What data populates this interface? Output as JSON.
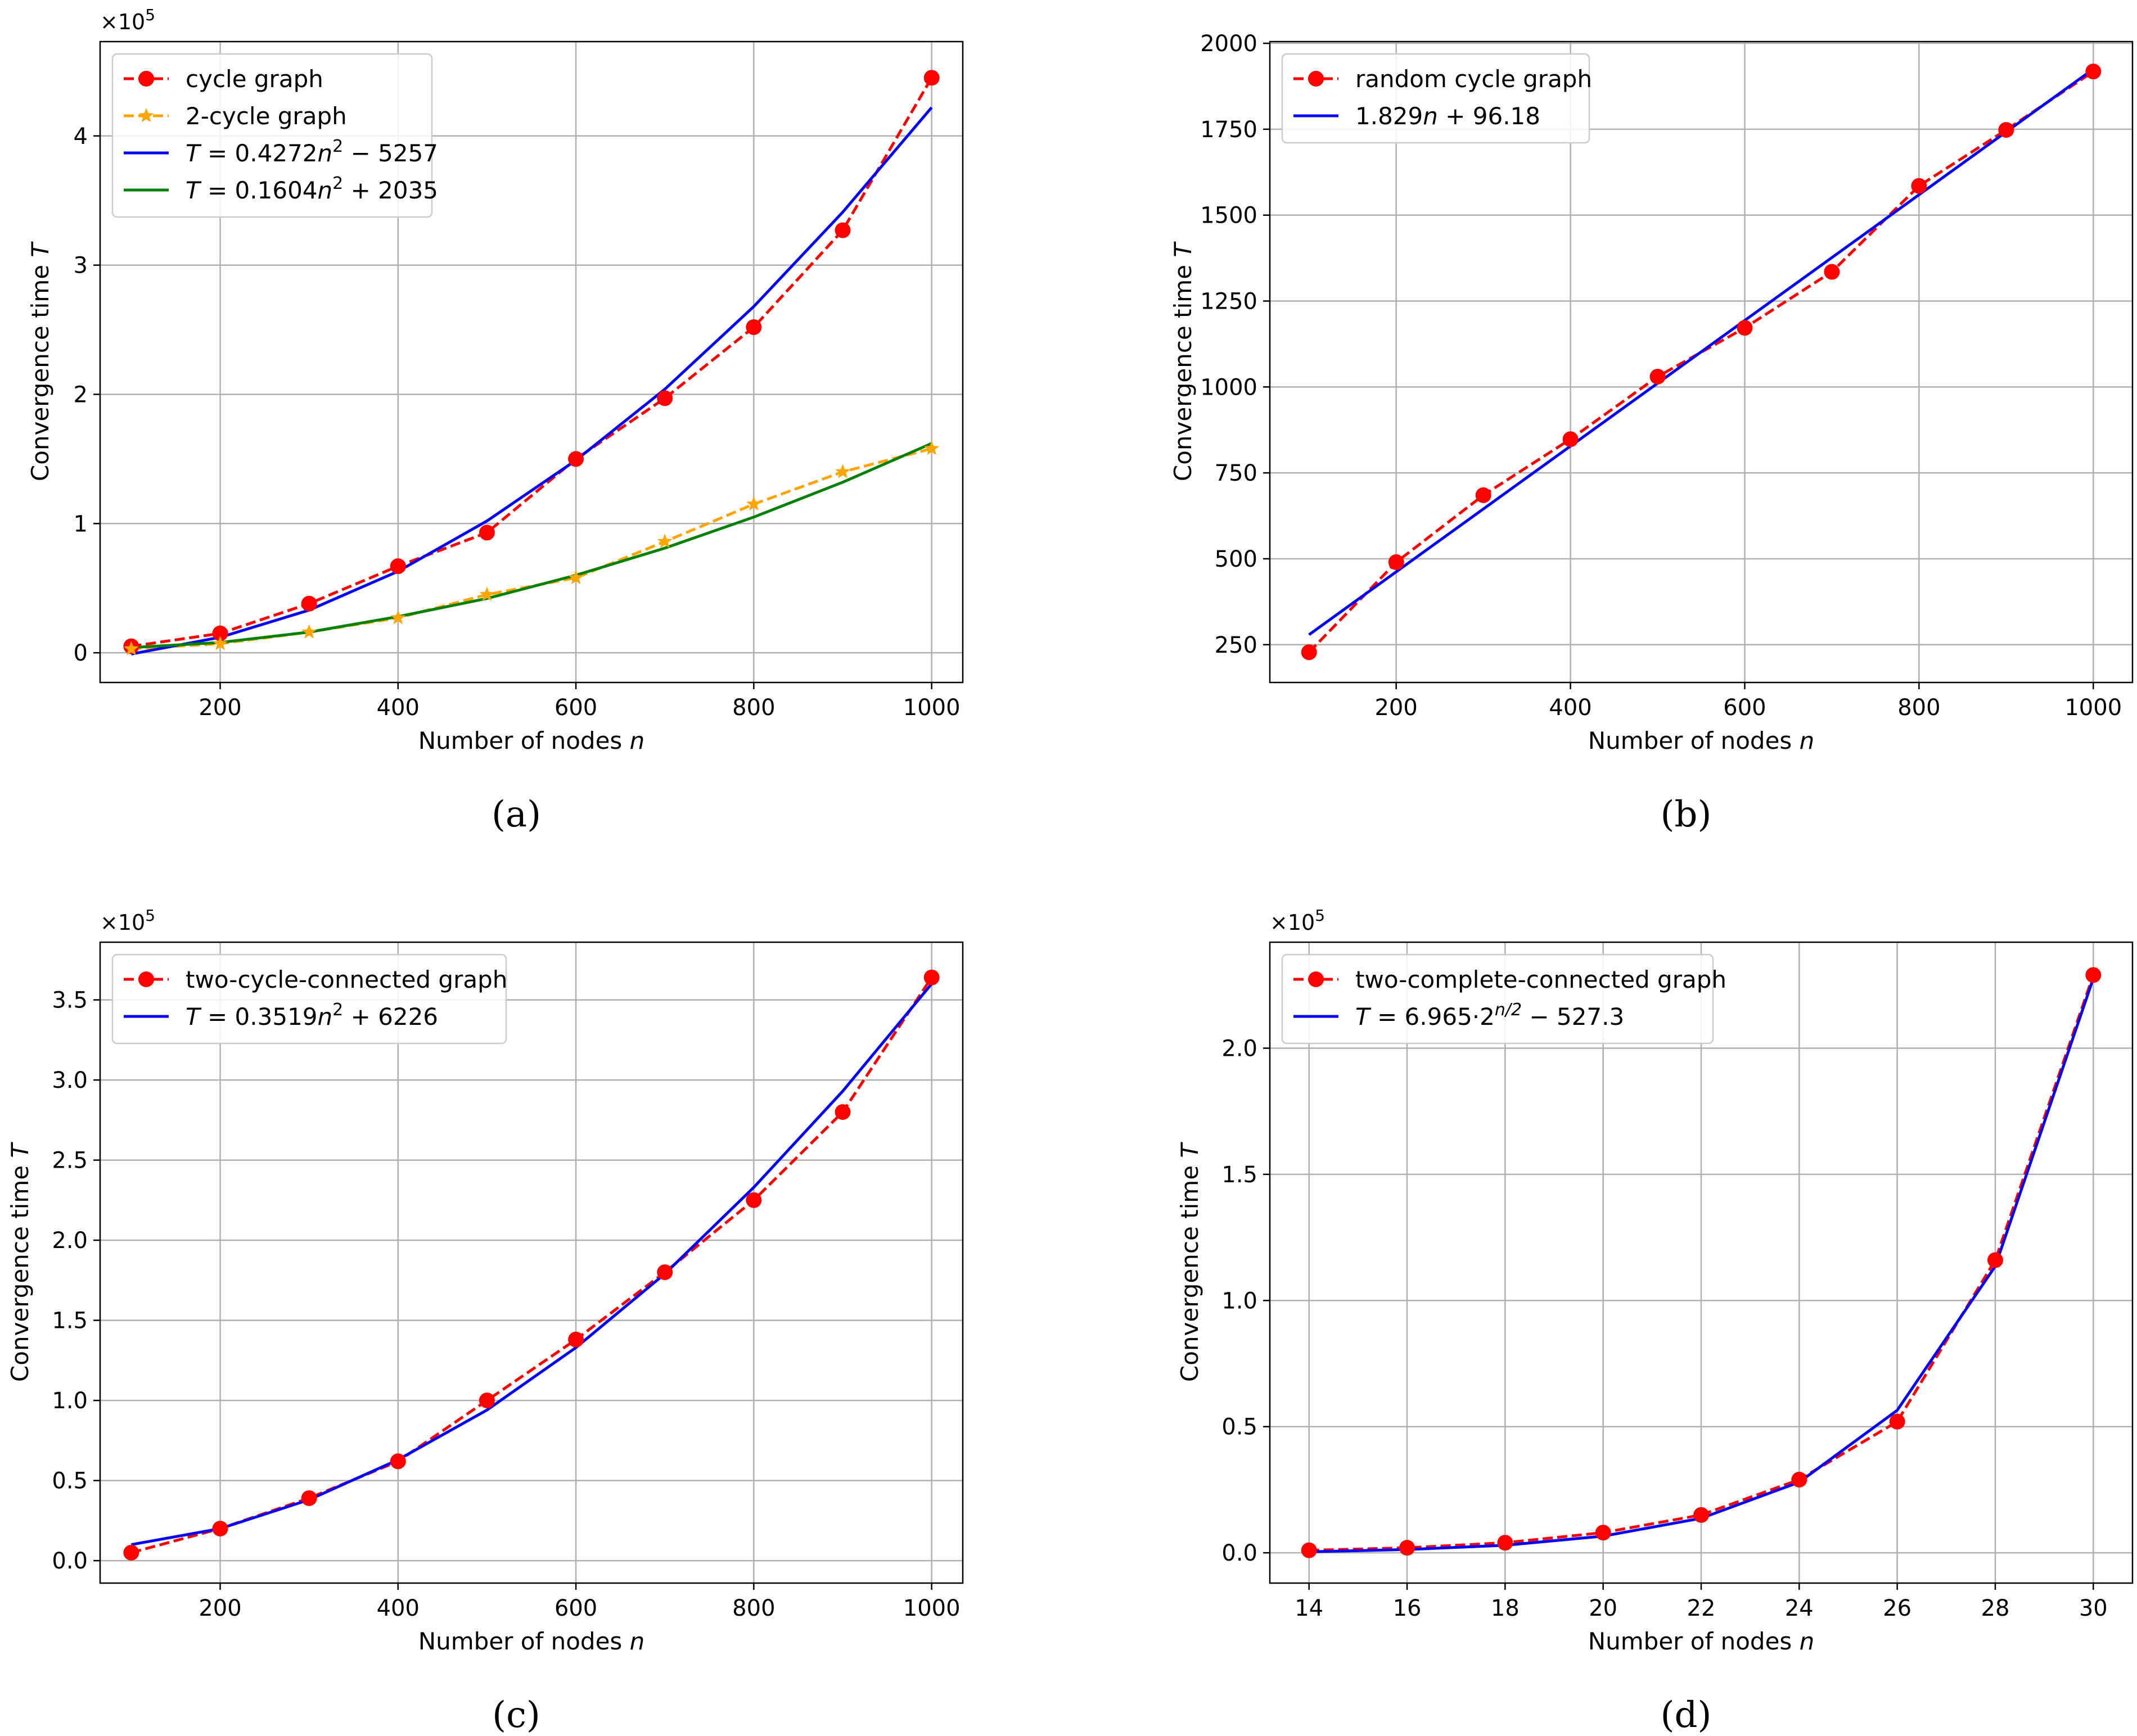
{
  "chart_data": [
    {
      "id": "a",
      "type": "line",
      "caption": "(a)",
      "xlabel": "Number of nodes n",
      "ylabel": "Convergence time T",
      "offset_label": "×10^5",
      "scale": 100000,
      "xlim": [
        65,
        1035
      ],
      "ylim": [
        -0.23,
        4.73
      ],
      "xticks": [
        200,
        400,
        600,
        800,
        1000
      ],
      "yticks": [
        0,
        1,
        2,
        3,
        4
      ],
      "ytick_labels": [
        "0",
        "1",
        "2",
        "3",
        "4"
      ],
      "grid": true,
      "legend_position": "upper-left",
      "series": [
        {
          "name": "cycle graph",
          "style": "dashed",
          "marker": "circle",
          "color": "#ff0000",
          "x": [
            100,
            200,
            300,
            400,
            500,
            600,
            700,
            800,
            900,
            1000
          ],
          "y": [
            0.05,
            0.15,
            0.38,
            0.67,
            0.93,
            1.5,
            1.97,
            2.52,
            3.27,
            4.45
          ]
        },
        {
          "name": "2-cycle graph",
          "style": "dashed",
          "marker": "star",
          "color": "#ffa500",
          "x": [
            100,
            200,
            300,
            400,
            500,
            600,
            700,
            800,
            900,
            1000
          ],
          "y": [
            0.03,
            0.07,
            0.16,
            0.27,
            0.45,
            0.58,
            0.86,
            1.15,
            1.4,
            1.58
          ]
        },
        {
          "name": "T = 0.4272n² − 5257",
          "style": "solid",
          "marker": "none",
          "color": "#0000ff",
          "x": [
            100,
            200,
            300,
            400,
            500,
            600,
            700,
            800,
            900,
            1000
          ],
          "y": [
            -0.01,
            0.12,
            0.33,
            0.63,
            1.02,
            1.49,
            2.04,
            2.68,
            3.41,
            4.22
          ]
        },
        {
          "name": "T = 0.1604n² + 2035",
          "style": "solid",
          "marker": "none",
          "color": "#008000",
          "x": [
            100,
            200,
            300,
            400,
            500,
            600,
            700,
            800,
            900,
            1000
          ],
          "y": [
            0.04,
            0.08,
            0.16,
            0.28,
            0.42,
            0.6,
            0.81,
            1.05,
            1.32,
            1.62
          ]
        }
      ]
    },
    {
      "id": "b",
      "type": "line",
      "caption": "(b)",
      "xlabel": "Number of nodes n",
      "ylabel": "Convergence time T",
      "offset_label": "",
      "scale": 1,
      "xlim": [
        55,
        1045
      ],
      "ylim": [
        140,
        2005
      ],
      "xticks": [
        200,
        400,
        600,
        800,
        1000
      ],
      "yticks": [
        250,
        500,
        750,
        1000,
        1250,
        1500,
        1750,
        2000
      ],
      "ytick_labels": [
        "250",
        "500",
        "750",
        "1000",
        "1250",
        "1500",
        "1750",
        "2000"
      ],
      "grid": true,
      "legend_position": "upper-left",
      "series": [
        {
          "name": "random cycle graph",
          "style": "dashed",
          "marker": "circle",
          "color": "#ff0000",
          "x": [
            100,
            200,
            300,
            400,
            500,
            600,
            700,
            800,
            900,
            1000
          ],
          "y": [
            228,
            490,
            685,
            848,
            1030,
            1172,
            1335,
            1585,
            1748,
            1918
          ]
        },
        {
          "name": "1.829n + 96.18",
          "style": "solid",
          "marker": "none",
          "color": "#0000ff",
          "x": [
            100,
            1000
          ],
          "y": [
            279.1,
            1925.2
          ]
        }
      ]
    },
    {
      "id": "c",
      "type": "line",
      "caption": "(c)",
      "xlabel": "Number of nodes n",
      "ylabel": "Convergence time T",
      "offset_label": "×10^5",
      "scale": 100000,
      "xlim": [
        65,
        1035
      ],
      "ylim": [
        -0.14,
        3.86
      ],
      "xticks": [
        200,
        400,
        600,
        800,
        1000
      ],
      "yticks": [
        0,
        0.5,
        1,
        1.5,
        2,
        2.5,
        3,
        3.5
      ],
      "ytick_labels": [
        "0.0",
        "0.5",
        "1.0",
        "1.5",
        "2.0",
        "2.5",
        "3.0",
        "3.5"
      ],
      "grid": true,
      "legend_position": "upper-left",
      "series": [
        {
          "name": "two-cycle-connected graph",
          "style": "dashed",
          "marker": "circle",
          "color": "#ff0000",
          "x": [
            100,
            200,
            300,
            400,
            500,
            600,
            700,
            800,
            900,
            1000
          ],
          "y": [
            0.05,
            0.2,
            0.39,
            0.62,
            1.0,
            1.38,
            1.8,
            2.25,
            2.8,
            3.64
          ]
        },
        {
          "name": "T = 0.3519n² + 6226",
          "style": "solid",
          "marker": "none",
          "color": "#0000ff",
          "x": [
            100,
            200,
            300,
            400,
            500,
            600,
            700,
            800,
            900,
            1000
          ],
          "y": [
            0.1,
            0.2,
            0.38,
            0.63,
            0.94,
            1.33,
            1.79,
            2.33,
            2.93,
            3.6
          ]
        }
      ]
    },
    {
      "id": "d",
      "type": "line",
      "caption": "(d)",
      "xlabel": "Number of nodes n",
      "ylabel": "Convergence time T",
      "offset_label": "×10^5",
      "scale": 100000,
      "xlim": [
        13.2,
        30.8
      ],
      "ylim": [
        -0.12,
        2.42
      ],
      "xticks": [
        14,
        16,
        18,
        20,
        22,
        24,
        26,
        28,
        30
      ],
      "yticks": [
        0,
        0.5,
        1,
        1.5,
        2
      ],
      "ytick_labels": [
        "0.0",
        "0.5",
        "1.0",
        "1.5",
        "2.0"
      ],
      "grid": true,
      "legend_position": "upper-left",
      "series": [
        {
          "name": "two-complete-connected graph",
          "style": "dashed",
          "marker": "circle",
          "color": "#ff0000",
          "x": [
            14,
            16,
            18,
            20,
            22,
            24,
            26,
            28,
            30
          ],
          "y": [
            0.01,
            0.02,
            0.04,
            0.08,
            0.15,
            0.29,
            0.52,
            1.16,
            2.29
          ]
        },
        {
          "name": "T = 6.965·2^(n/2) − 527.3",
          "style": "solid",
          "marker": "none",
          "color": "#0000ff",
          "x": [
            14,
            16,
            18,
            20,
            22,
            24,
            26,
            28,
            30
          ],
          "y": [
            0.004,
            0.013,
            0.03,
            0.066,
            0.137,
            0.28,
            0.565,
            1.136,
            2.277
          ]
        }
      ]
    }
  ]
}
